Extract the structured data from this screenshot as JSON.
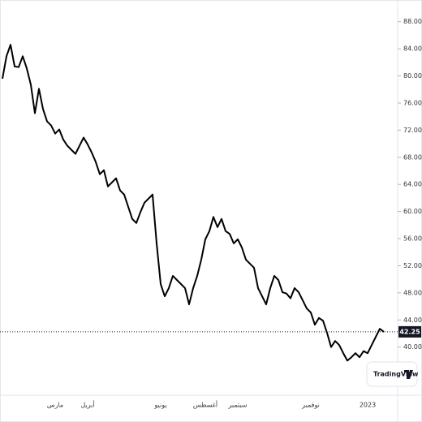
{
  "chart_data": {
    "type": "line",
    "color": "#000000",
    "categories": [
      null,
      null,
      null,
      null,
      null,
      null,
      null,
      null,
      null,
      null,
      null,
      null,
      null,
      "مارس",
      null,
      null,
      null,
      null,
      null,
      null,
      null,
      "أبريل",
      null,
      null,
      null,
      null,
      null,
      null,
      null,
      null,
      null,
      null,
      null,
      null,
      null,
      null,
      null,
      null,
      null,
      "يونيو",
      null,
      null,
      null,
      null,
      null,
      null,
      null,
      null,
      null,
      null,
      "أغسطس",
      null,
      null,
      null,
      null,
      null,
      null,
      null,
      "سبتمبر",
      null,
      null,
      null,
      null,
      null,
      null,
      null,
      null,
      null,
      null,
      null,
      null,
      null,
      null,
      null,
      null,
      null,
      "نوفمبر",
      null,
      null,
      null,
      null,
      null,
      null,
      null,
      null,
      null,
      null,
      null,
      null,
      null,
      "2023",
      null,
      null,
      null,
      null
    ],
    "values": [
      79.6,
      82.9,
      84.6,
      81.4,
      81.3,
      82.9,
      81.1,
      78.7,
      74.5,
      78.1,
      75.1,
      73.3,
      72.7,
      71.5,
      72.1,
      70.6,
      69.7,
      69.1,
      68.5,
      69.7,
      70.9,
      69.9,
      68.7,
      67.3,
      65.5,
      66.1,
      63.7,
      64.3,
      64.9,
      63.1,
      62.5,
      60.7,
      58.9,
      58.3,
      59.9,
      61.3,
      61.9,
      62.5,
      55.3,
      49.3,
      47.5,
      48.7,
      50.5,
      49.9,
      49.3,
      48.7,
      46.3,
      48.7,
      50.5,
      52.9,
      55.9,
      57.1,
      59.2,
      57.7,
      58.9,
      57.1,
      56.7,
      55.3,
      55.9,
      54.7,
      52.9,
      52.3,
      51.7,
      48.7,
      47.5,
      46.3,
      48.7,
      50.5,
      49.9,
      48.1,
      47.9,
      47.2,
      48.7,
      48.1,
      46.9,
      45.7,
      45.1,
      43.3,
      44.3,
      43.9,
      42.1,
      40.0,
      40.9,
      40.3,
      39.1,
      38.0,
      38.5,
      39.1,
      38.5,
      39.4,
      39.1,
      40.3,
      41.5,
      42.7,
      42.25
    ],
    "ylim": [
      32.9,
      91.2
    ],
    "yticks": [
      {
        "value": 40,
        "label": "40.00"
      },
      {
        "value": 44,
        "label": "44.00"
      },
      {
        "value": 48,
        "label": "48.00"
      },
      {
        "value": 52,
        "label": "52.00"
      },
      {
        "value": 56,
        "label": "56.00"
      },
      {
        "value": 60,
        "label": "60.00"
      },
      {
        "value": 64,
        "label": "64.00"
      },
      {
        "value": 68,
        "label": "68.00"
      },
      {
        "value": 72,
        "label": "72.00"
      },
      {
        "value": 76,
        "label": "76.00"
      },
      {
        "value": 80,
        "label": "80.00"
      },
      {
        "value": 84,
        "label": "84.00"
      },
      {
        "value": 88,
        "label": "88.00"
      }
    ],
    "watermark": "TradingView"
  }
}
